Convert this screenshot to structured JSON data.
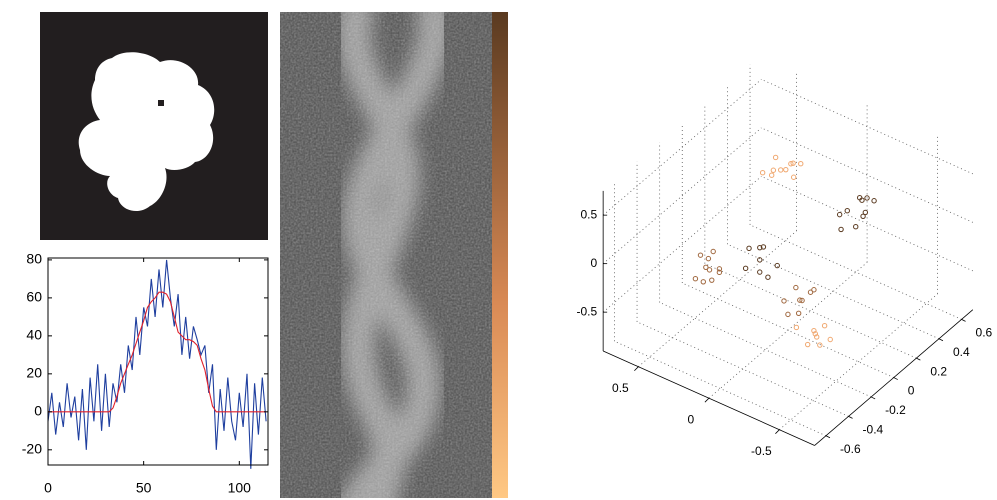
{
  "chart_data": [
    {
      "type": "line",
      "x": [
        0,
        2,
        4,
        6,
        8,
        10,
        12,
        14,
        16,
        18,
        20,
        22,
        24,
        26,
        28,
        30,
        32,
        34,
        36,
        38,
        40,
        42,
        44,
        46,
        48,
        50,
        52,
        54,
        56,
        58,
        60,
        62,
        64,
        66,
        68,
        70,
        72,
        74,
        76,
        78,
        80,
        82,
        84,
        86,
        88,
        90,
        92,
        94,
        96,
        98,
        100,
        102,
        104,
        106,
        108,
        110,
        112,
        114
      ],
      "series": [
        {
          "color": "#1f3f9f",
          "values": [
            -5,
            10,
            -12,
            5,
            -8,
            15,
            -3,
            8,
            -15,
            12,
            -20,
            18,
            -5,
            25,
            -10,
            20,
            -8,
            15,
            5,
            25,
            10,
            35,
            22,
            50,
            30,
            55,
            45,
            70,
            50,
            75,
            55,
            80,
            60,
            45,
            62,
            30,
            50,
            28,
            45,
            38,
            30,
            35,
            10,
            25,
            -20,
            12,
            -10,
            18,
            -5,
            -15,
            10,
            -8,
            20,
            -30,
            15,
            -12,
            18,
            -5
          ]
        },
        {
          "color": "#e0202a",
          "values": [
            0,
            0,
            0,
            0,
            0,
            0,
            0,
            0,
            0,
            0,
            0,
            0,
            0,
            0,
            0,
            0,
            0,
            2,
            8,
            15,
            20,
            25,
            30,
            36,
            42,
            48,
            55,
            58,
            60,
            63,
            63,
            62,
            58,
            50,
            42,
            40,
            38,
            38,
            37,
            35,
            28,
            22,
            12,
            3,
            0,
            0,
            0,
            0,
            0,
            0,
            0,
            0,
            0,
            0,
            0,
            0,
            0,
            0
          ]
        }
      ],
      "xlim": [
        0,
        115
      ],
      "xticks": [
        0,
        50,
        100
      ],
      "ylim": [
        -28,
        81
      ],
      "yticks": [
        -20,
        0,
        20,
        40,
        60,
        80
      ]
    },
    {
      "type": "scatter3d",
      "xlim": [
        -0.75,
        0.75
      ],
      "ylim": [
        -0.7,
        0.7
      ],
      "zlim": [
        -0.9,
        0.75
      ],
      "xticks": [
        -0.5,
        0,
        0.5
      ],
      "yticks": [
        -0.6,
        -0.4,
        -0.2,
        0,
        0.2,
        0.4,
        0.6
      ],
      "zticks": [
        -0.5,
        0,
        0.5
      ],
      "grid": true,
      "series": [
        {
          "color": "#5a3a20",
          "x": [
            -0.3,
            -0.22,
            -0.28,
            -0.18,
            -0.33,
            -0.24,
            -0.2,
            -0.3,
            -0.26,
            -0.15,
            0.04,
            0.08,
            0,
            0.1,
            -0.02,
            0.06,
            0.03,
            -0.05
          ],
          "y": [
            0.31,
            0.36,
            0.25,
            0.3,
            0.35,
            0.4,
            0.22,
            0.29,
            0.33,
            0.27,
            -0.2,
            -0.15,
            -0.25,
            -0.22,
            -0.12,
            -0.3,
            -0.18,
            -0.24
          ],
          "z": [
            0.2,
            0.25,
            0.1,
            0.15,
            0.3,
            0.22,
            0.05,
            0.18,
            0.28,
            0.12,
            0,
            0.05,
            -0.05,
            0.1,
            -0.1,
            0,
            0.12,
            -0.08
          ]
        },
        {
          "color": "#a0683f",
          "x": [
            0.22,
            0.26,
            0.18,
            0.3,
            0.2,
            0.25,
            0.15,
            0.28,
            0.23,
            0.19,
            -0.26,
            -0.2,
            -0.3,
            -0.22,
            -0.32,
            -0.18,
            -0.28,
            -0.24
          ],
          "y": [
            -0.42,
            -0.38,
            -0.45,
            -0.4,
            -0.5,
            -0.35,
            -0.42,
            -0.47,
            -0.44,
            -0.37,
            -0.22,
            -0.18,
            -0.28,
            -0.15,
            -0.2,
            -0.26,
            -0.12,
            -0.3
          ],
          "z": [
            0,
            0.05,
            -0.05,
            0.08,
            -0.03,
            0.1,
            0.02,
            -0.08,
            0.04,
            -0.02,
            -0.2,
            -0.15,
            -0.25,
            -0.3,
            -0.1,
            -0.22,
            -0.18,
            -0.28
          ]
        },
        {
          "color": "#f0a870",
          "x": [
            0.22,
            0.18,
            0.26,
            0.15,
            0.3,
            0.2,
            0.24,
            0.28,
            0.12,
            0.22,
            -0.41,
            -0.36,
            -0.46,
            -0.38,
            -0.5,
            -0.42,
            -0.34,
            -0.45
          ],
          "y": [
            0.21,
            0.25,
            0.18,
            0.3,
            0.15,
            0.12,
            0.28,
            0.24,
            0.2,
            0.32,
            -0.27,
            -0.22,
            -0.32,
            -0.3,
            -0.25,
            -0.2,
            -0.35,
            -0.28
          ],
          "z": [
            0.4,
            0.45,
            0.35,
            0.42,
            0.38,
            0.5,
            0.32,
            0.46,
            0.4,
            0.36,
            -0.4,
            -0.45,
            -0.35,
            -0.5,
            -0.42,
            -0.38,
            -0.3,
            -0.48
          ]
        }
      ]
    }
  ]
}
